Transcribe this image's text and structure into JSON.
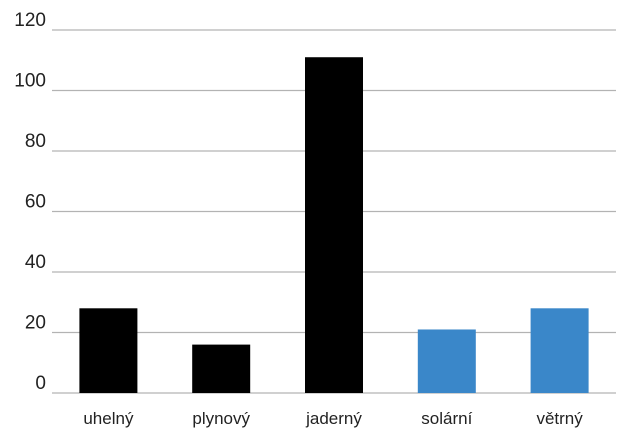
{
  "chart_data": {
    "type": "bar",
    "title": "",
    "xlabel": "",
    "ylabel": "",
    "ylim": [
      0,
      120
    ],
    "yticks": [
      0,
      20,
      40,
      60,
      80,
      100,
      120
    ],
    "grid": true,
    "categories": [
      "uhelný",
      "plynový",
      "jaderný",
      "solární",
      "větrný"
    ],
    "values": [
      28,
      16,
      111,
      21,
      28
    ],
    "colors": [
      "#000000",
      "#000000",
      "#000000",
      "#3a87c9",
      "#3a87c9"
    ]
  }
}
